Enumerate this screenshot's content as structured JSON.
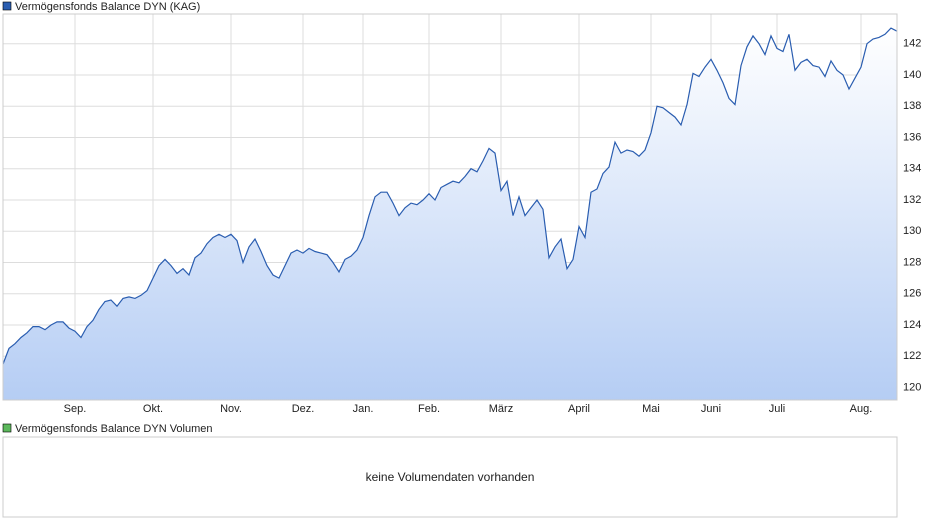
{
  "chart_data": [
    {
      "type": "line",
      "series": [
        {
          "name": "Vermögensfonds Balance DYN (KAG)",
          "color": "#2a5db0",
          "values": [
            121.5,
            122.5,
            122.8,
            123.2,
            123.5,
            123.9,
            123.9,
            123.7,
            124.0,
            124.2,
            124.2,
            123.8,
            123.6,
            123.2,
            123.9,
            124.3,
            125.0,
            125.5,
            125.6,
            125.2,
            125.7,
            125.8,
            125.7,
            125.9,
            126.2,
            127.0,
            127.8,
            128.2,
            127.8,
            127.3,
            127.6,
            127.2,
            128.3,
            128.6,
            129.2,
            129.6,
            129.8,
            129.6,
            129.8,
            129.4,
            128.0,
            129.0,
            129.5,
            128.7,
            127.8,
            127.2,
            127.0,
            127.8,
            128.6,
            128.8,
            128.6,
            128.9,
            128.7,
            128.6,
            128.5,
            128.0,
            127.4,
            128.2,
            128.4,
            128.8,
            129.6,
            131.0,
            132.2,
            132.5,
            132.5,
            131.8,
            131.0,
            131.5,
            131.8,
            131.7,
            132.0,
            132.4,
            132.0,
            132.8,
            133.0,
            133.2,
            133.1,
            133.5,
            134.0,
            133.8,
            134.5,
            135.3,
            135.0,
            132.6,
            133.2,
            131.0,
            132.2,
            131.0,
            131.5,
            132.0,
            131.4,
            128.3,
            129.0,
            129.5,
            127.6,
            128.2,
            130.3,
            129.6,
            132.5,
            132.7,
            133.7,
            134.1,
            135.7,
            135.0,
            135.2,
            135.1,
            134.8,
            135.2,
            136.3,
            138.0,
            137.9,
            137.6,
            137.3,
            136.8,
            138.1,
            140.1,
            139.9,
            140.5,
            141.0,
            140.3,
            139.5,
            138.5,
            138.1,
            140.6,
            141.8,
            142.5,
            142.0,
            141.3,
            142.5,
            141.7,
            141.5,
            142.6,
            140.3,
            140.8,
            141.0,
            140.6,
            140.5,
            139.9,
            140.9,
            140.3,
            140.0,
            139.1,
            139.8,
            140.5,
            142.0,
            142.3,
            142.4,
            142.6,
            143.0,
            142.8
          ]
        }
      ],
      "categories": [
        null,
        null,
        null,
        null,
        null,
        null,
        null,
        null,
        null,
        null,
        null,
        null,
        "Sep.",
        null,
        null,
        null,
        null,
        null,
        null,
        null,
        null,
        null,
        null,
        null,
        null,
        "Okt.",
        null,
        null,
        null,
        null,
        null,
        null,
        null,
        null,
        null,
        null,
        null,
        null,
        "Nov.",
        null,
        null,
        null,
        null,
        null,
        null,
        null,
        null,
        null,
        null,
        null,
        "Dez.",
        null,
        null,
        null,
        null,
        null,
        null,
        null,
        null,
        null,
        "Jan.",
        null,
        null,
        null,
        null,
        null,
        null,
        null,
        null,
        null,
        null,
        "Feb.",
        null,
        null,
        null,
        null,
        null,
        null,
        null,
        null,
        null,
        null,
        null,
        "März",
        null,
        null,
        null,
        null,
        null,
        null,
        null,
        null,
        null,
        null,
        null,
        null,
        "April",
        null,
        null,
        null,
        null,
        null,
        null,
        null,
        null,
        null,
        null,
        null,
        "Mai",
        null,
        null,
        null,
        null,
        null,
        null,
        null,
        null,
        null,
        "Juni",
        null,
        null,
        null,
        null,
        null,
        null,
        null,
        null,
        null,
        null,
        "Juli",
        null,
        null,
        null,
        null,
        null,
        null,
        null,
        null,
        null,
        null,
        null,
        null,
        null,
        "Aug.",
        null,
        null,
        null,
        null,
        null,
        null
      ],
      "ylim": [
        119.2,
        143.9
      ],
      "yticks": [
        120,
        122,
        124,
        126,
        128,
        130,
        132,
        134,
        136,
        138,
        140,
        142
      ],
      "grid": true,
      "area": true
    },
    {
      "type": "empty",
      "series": [
        {
          "name": "Vermögensfonds Balance DYN Volumen",
          "color": "#5cb85c"
        }
      ],
      "message": "keine Volumendaten vorhanden"
    }
  ]
}
